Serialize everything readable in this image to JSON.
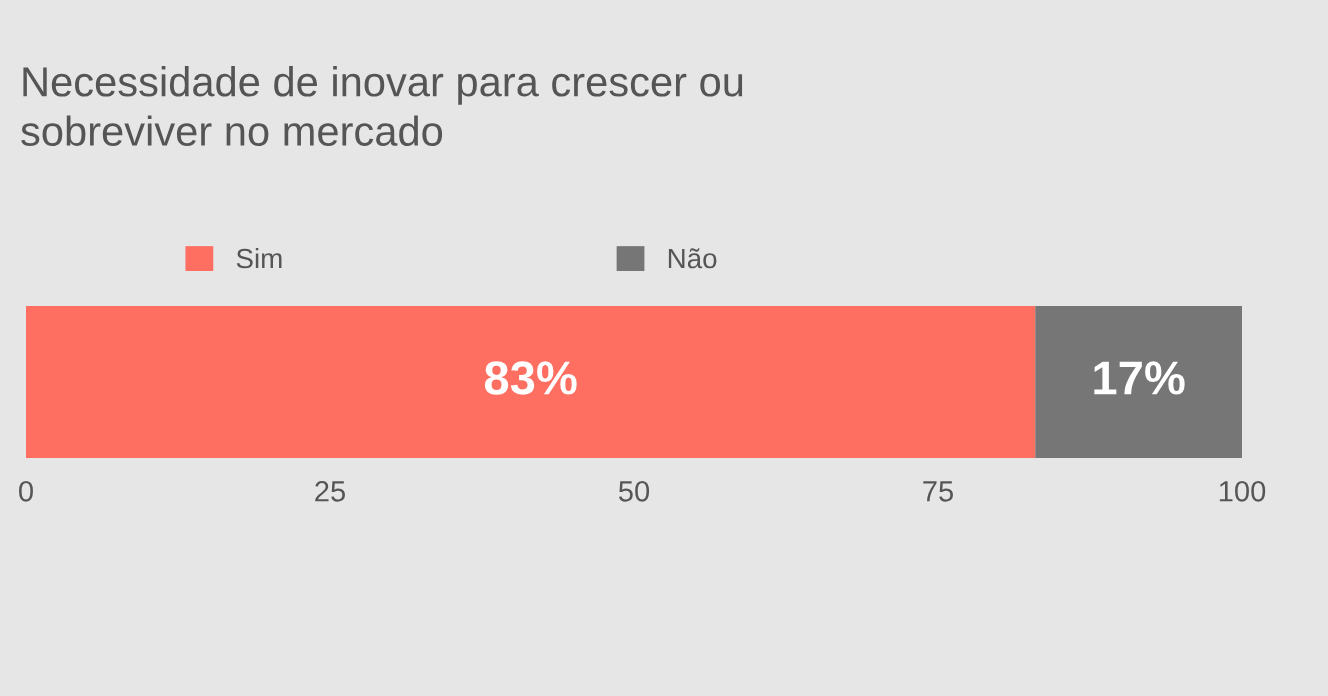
{
  "chart_data": {
    "type": "bar",
    "orientation": "horizontal",
    "stacked": true,
    "title": "Necessidade de inovar para crescer ou\nsobreviver no mercado",
    "categories": [
      null
    ],
    "series": [
      {
        "name": "Sim",
        "color": "#ff6f61",
        "values": [
          83
        ],
        "value_labels": [
          "83%"
        ]
      },
      {
        "name": "Não",
        "color": "#767676",
        "values": [
          17
        ],
        "value_labels": [
          "17%"
        ]
      }
    ],
    "xlim": [
      0,
      100
    ],
    "xticks": [
      0,
      25,
      50,
      75,
      100
    ],
    "grid": false,
    "legend": "top"
  }
}
